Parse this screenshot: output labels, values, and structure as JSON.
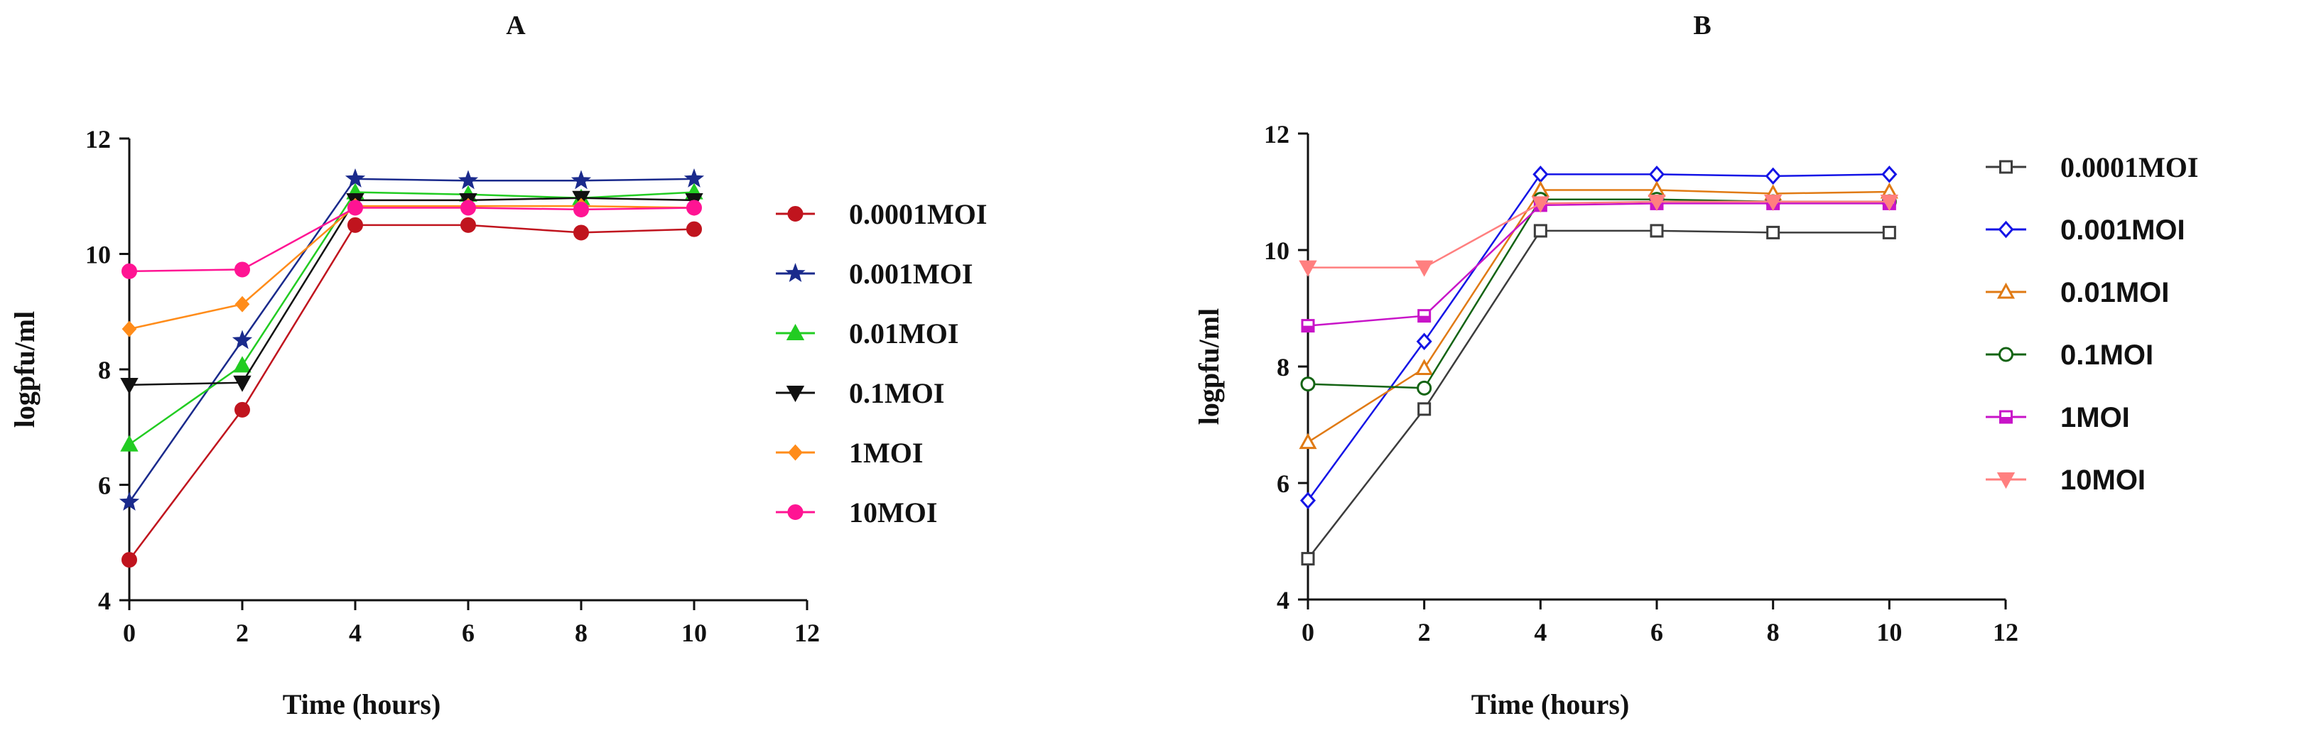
{
  "chart_data": [
    {
      "panel": "A",
      "type": "line",
      "title": "A",
      "xlabel": "Time (hours)",
      "ylabel": "logpfu/ml",
      "xlim": [
        0,
        12
      ],
      "ylim": [
        4,
        12
      ],
      "xticks": [
        "0",
        "2",
        "4",
        "6",
        "8",
        "10",
        "12"
      ],
      "yticks": [
        "4",
        "6",
        "8",
        "10",
        "12"
      ],
      "legend_position": "right",
      "x": [
        0,
        2,
        4,
        6,
        8,
        10
      ],
      "series": [
        {
          "name": "0.0001MOI",
          "color": "#c0141e",
          "marker": "circle",
          "values": [
            4.7,
            7.3,
            10.5,
            10.5,
            10.37,
            10.43
          ]
        },
        {
          "name": "0.001MOI",
          "color": "#1a2a8c",
          "marker": "star",
          "values": [
            5.7,
            8.5,
            11.3,
            11.27,
            11.27,
            11.3
          ]
        },
        {
          "name": "0.01MOI",
          "color": "#22cc22",
          "marker": "triangle-up",
          "values": [
            6.7,
            8.07,
            11.07,
            11.03,
            10.97,
            11.07
          ]
        },
        {
          "name": "0.1MOI",
          "color": "#111111",
          "marker": "triangle-down",
          "values": [
            7.73,
            7.77,
            10.93,
            10.93,
            10.97,
            10.93
          ]
        },
        {
          "name": "1MOI",
          "color": "#ff8c1a",
          "marker": "diamond",
          "values": [
            8.7,
            9.13,
            10.83,
            10.83,
            10.83,
            10.8
          ]
        },
        {
          "name": "10MOI",
          "color": "#ff1493",
          "marker": "circle",
          "values": [
            9.7,
            9.73,
            10.8,
            10.8,
            10.77,
            10.8
          ]
        }
      ]
    },
    {
      "panel": "B",
      "type": "line",
      "title": "B",
      "xlabel": "Time (hours)",
      "ylabel": "logpfu/ml",
      "xlim": [
        0,
        12
      ],
      "ylim": [
        4,
        12
      ],
      "xticks": [
        "0",
        "2",
        "4",
        "6",
        "8",
        "10",
        "12"
      ],
      "yticks": [
        "4",
        "6",
        "8",
        "10",
        "12"
      ],
      "legend_position": "right",
      "x": [
        0,
        2,
        4,
        6,
        8,
        10
      ],
      "series": [
        {
          "name": "0.0001MOI",
          "color": "#3c3c3c",
          "marker": "square-open",
          "values": [
            4.7,
            7.27,
            10.33,
            10.33,
            10.3,
            10.3
          ]
        },
        {
          "name": "0.001MOI",
          "color": "#1414e6",
          "marker": "diamond-open",
          "values": [
            5.7,
            8.43,
            11.3,
            11.3,
            11.27,
            11.3
          ]
        },
        {
          "name": "0.01MOI",
          "color": "#e07a14",
          "marker": "triangle-open",
          "values": [
            6.7,
            7.97,
            11.03,
            11.03,
            10.97,
            11.0
          ]
        },
        {
          "name": "0.1MOI",
          "color": "#146414",
          "marker": "circle-open",
          "values": [
            7.7,
            7.63,
            10.87,
            10.87,
            10.83,
            10.83
          ]
        },
        {
          "name": "1MOI",
          "color": "#c814c8",
          "marker": "square-half",
          "values": [
            8.7,
            8.87,
            10.77,
            10.8,
            10.8,
            10.8
          ]
        },
        {
          "name": "10MOI",
          "color": "#ff7f7f",
          "marker": "triangle-down",
          "values": [
            9.7,
            9.7,
            10.8,
            10.83,
            10.83,
            10.83
          ]
        }
      ]
    }
  ]
}
